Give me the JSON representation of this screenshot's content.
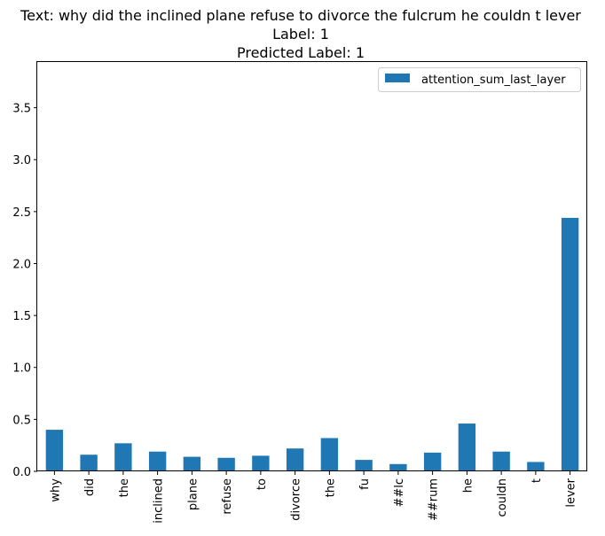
{
  "chart_data": {
    "type": "bar",
    "title_lines": [
      "Text: why did the inclined plane refuse to divorce the fulcrum he couldn t lever",
      "Label: 1",
      "Predicted Label: 1"
    ],
    "categories": [
      "why",
      "did",
      "the",
      "inclined",
      "plane",
      "refuse",
      "to",
      "divorce",
      "the",
      "fu",
      "##lc",
      "##rum",
      "he",
      "couldn",
      "t",
      "lever"
    ],
    "series": [
      {
        "name": "attention_sum_last_layer",
        "values": [
          0.4,
          0.16,
          0.27,
          0.19,
          0.14,
          0.13,
          0.15,
          0.22,
          0.32,
          0.11,
          0.07,
          0.18,
          0.46,
          0.19,
          0.09,
          2.44
        ],
        "color": "#1f77b4"
      }
    ],
    "yticks": [
      "0.0",
      "0.5",
      "1.0",
      "1.5",
      "2.0",
      "2.5",
      "3.0",
      "3.5"
    ],
    "ylim": [
      0,
      3.94
    ],
    "legend_position": "top-right",
    "grid": false
  }
}
